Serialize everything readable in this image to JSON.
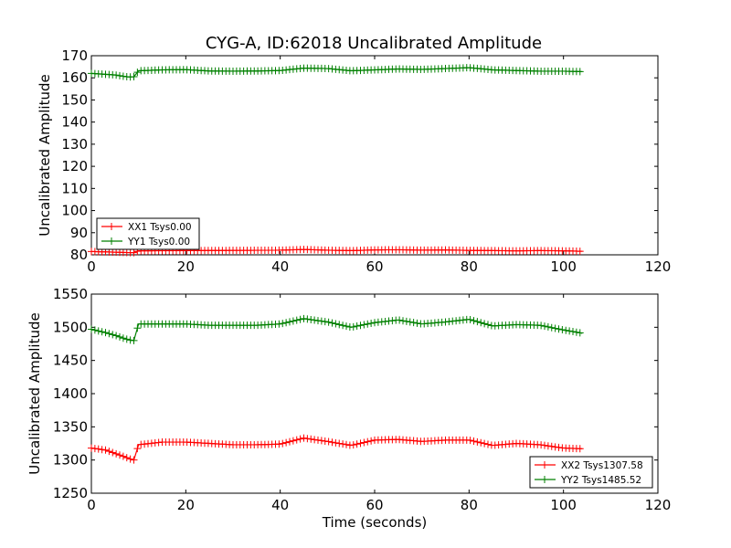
{
  "title": "CYG-A, ID:62018 Uncalibrated Amplitude",
  "chart_data": [
    {
      "type": "line",
      "title": "CYG-A, ID:62018 Uncalibrated Amplitude",
      "xlabel": "",
      "ylabel": "Uncalibrated Amplitude",
      "xlim": [
        0,
        120
      ],
      "ylim": [
        80,
        170
      ],
      "xticks": [
        0,
        20,
        40,
        60,
        80,
        100,
        120
      ],
      "yticks": [
        80,
        90,
        100,
        110,
        120,
        130,
        140,
        150,
        160,
        170
      ],
      "grid": false,
      "legend_position": "lower-left",
      "series": [
        {
          "name": "XX1 Tsys0.00",
          "color": "#ff0000",
          "x": [
            0,
            5,
            8,
            9,
            10,
            20,
            30,
            40,
            45,
            50,
            55,
            60,
            65,
            70,
            75,
            80,
            85,
            90,
            95,
            100,
            104
          ],
          "y": [
            81.5,
            81.2,
            81.0,
            81.0,
            81.8,
            81.9,
            82.0,
            82.1,
            82.4,
            82.1,
            81.9,
            82.2,
            82.3,
            82.1,
            82.2,
            82.0,
            81.9,
            81.8,
            81.9,
            81.8,
            81.6
          ]
        },
        {
          "name": "YY1 Tsys0.00",
          "color": "#008000",
          "x": [
            0,
            3,
            5,
            7,
            8,
            9,
            10,
            15,
            20,
            25,
            30,
            35,
            40,
            45,
            50,
            55,
            60,
            65,
            70,
            75,
            80,
            85,
            90,
            95,
            100,
            104
          ],
          "y": [
            162,
            161.6,
            161.3,
            160.6,
            160.4,
            160.5,
            163.2,
            163.6,
            163.7,
            163.1,
            163.0,
            163.1,
            163.3,
            164.4,
            164.2,
            163.2,
            163.6,
            164.0,
            163.8,
            164.2,
            164.6,
            163.6,
            163.3,
            163.0,
            163.0,
            162.8
          ]
        }
      ]
    },
    {
      "type": "line",
      "title": "",
      "xlabel": "Time (seconds)",
      "ylabel": "Uncalibrated Amplitude",
      "xlim": [
        0,
        120
      ],
      "ylim": [
        1250,
        1550
      ],
      "xticks": [
        0,
        20,
        40,
        60,
        80,
        100,
        120
      ],
      "yticks": [
        1250,
        1300,
        1350,
        1400,
        1450,
        1500,
        1550
      ],
      "grid": false,
      "legend_position": "lower-right",
      "series": [
        {
          "name": "XX2 Tsys1307.58",
          "color": "#ff0000",
          "x": [
            0,
            3,
            5,
            7,
            8,
            9,
            10,
            15,
            20,
            25,
            30,
            35,
            40,
            45,
            50,
            55,
            60,
            65,
            70,
            75,
            80,
            85,
            90,
            95,
            100,
            104
          ],
          "y": [
            1318,
            1315,
            1310,
            1305,
            1302,
            1300,
            1323,
            1327,
            1327,
            1325,
            1323,
            1323,
            1324,
            1333,
            1328,
            1322,
            1330,
            1331,
            1328,
            1330,
            1330,
            1322,
            1325,
            1323,
            1318,
            1317
          ]
        },
        {
          "name": "YY2 Tsys1485.52",
          "color": "#008000",
          "x": [
            0,
            3,
            5,
            7,
            8,
            9,
            10,
            15,
            20,
            25,
            30,
            35,
            40,
            45,
            50,
            55,
            60,
            65,
            70,
            75,
            80,
            85,
            90,
            95,
            100,
            104
          ],
          "y": [
            1497,
            1492,
            1488,
            1483,
            1481,
            1480,
            1505,
            1505,
            1505,
            1503,
            1503,
            1503,
            1505,
            1513,
            1508,
            1500,
            1507,
            1511,
            1505,
            1508,
            1512,
            1502,
            1504,
            1503,
            1496,
            1491
          ]
        }
      ]
    }
  ]
}
